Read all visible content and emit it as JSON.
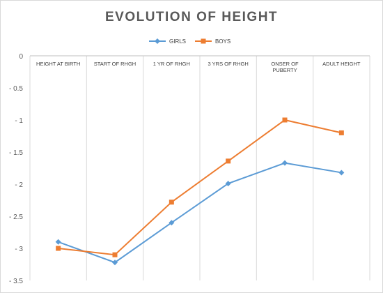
{
  "chart_data": {
    "type": "line",
    "title": "EVOLUTION OF HEIGHT",
    "xlabel": "",
    "ylabel": "",
    "categories": [
      [
        "HEIGHT AT BIRTH"
      ],
      [
        "START OF RHGH"
      ],
      [
        "1 YR OF RHGH"
      ],
      [
        "3 YRS OF RHGH"
      ],
      [
        "ONSER OF",
        "PUBERTY"
      ],
      [
        "ADULT HEIGHT"
      ]
    ],
    "ylim": [
      -3.5,
      0
    ],
    "yticks": [
      0,
      -0.5,
      -1,
      -1.5,
      -2,
      -2.5,
      -3,
      -3.5
    ],
    "ytick_labels": [
      "0",
      "- 0.5",
      "- 1",
      "- 1.5",
      "- 2",
      "- 2.5",
      "- 3",
      "- 3.5"
    ],
    "legend_position": "top-center",
    "series": [
      {
        "name": "GIRLS",
        "color": "#5b9bd5",
        "marker": "diamond",
        "values": [
          -2.9,
          -3.22,
          -2.6,
          -1.99,
          -1.67,
          -1.82
        ]
      },
      {
        "name": "BOYS",
        "color": "#ed7d31",
        "marker": "square",
        "values": [
          -3.0,
          -3.1,
          -2.28,
          -1.64,
          -1.0,
          -1.2
        ]
      }
    ],
    "grid": {
      "vertical": true,
      "horizontal": false
    }
  }
}
